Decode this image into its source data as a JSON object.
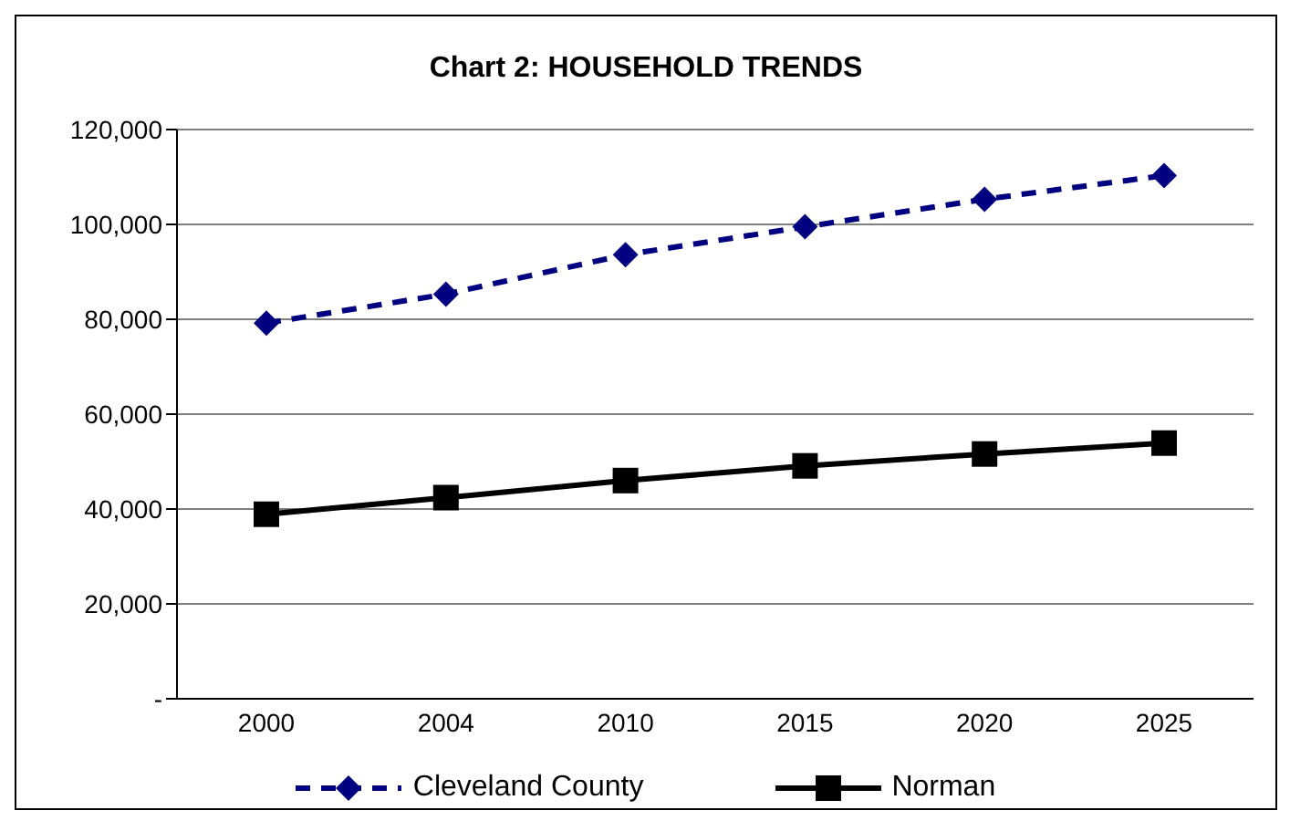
{
  "chart_data": {
    "type": "line",
    "title": "Chart 2: HOUSEHOLD TRENDS",
    "categories": [
      "2000",
      "2004",
      "2010",
      "2015",
      "2020",
      "2025"
    ],
    "series": [
      {
        "name": "Cleveland County",
        "color": "#000080",
        "values": [
          79200,
          85300,
          93600,
          99500,
          105300,
          110300
        ],
        "marker": "diamond",
        "line_style": "dashed"
      },
      {
        "name": "Norman",
        "color": "#000000",
        "values": [
          38900,
          42400,
          46000,
          49100,
          51600,
          53900
        ],
        "marker": "square",
        "line_style": "solid"
      }
    ],
    "ylim": [
      0,
      120000
    ],
    "yticks": [
      {
        "value": 0,
        "label": "-"
      },
      {
        "value": 20000,
        "label": "20,000"
      },
      {
        "value": 40000,
        "label": "40,000"
      },
      {
        "value": 60000,
        "label": "60,000"
      },
      {
        "value": 80000,
        "label": "80,000"
      },
      {
        "value": 100000,
        "label": "100,000"
      },
      {
        "value": 120000,
        "label": "120,000"
      }
    ],
    "grid": "y",
    "legend": "bottom"
  }
}
